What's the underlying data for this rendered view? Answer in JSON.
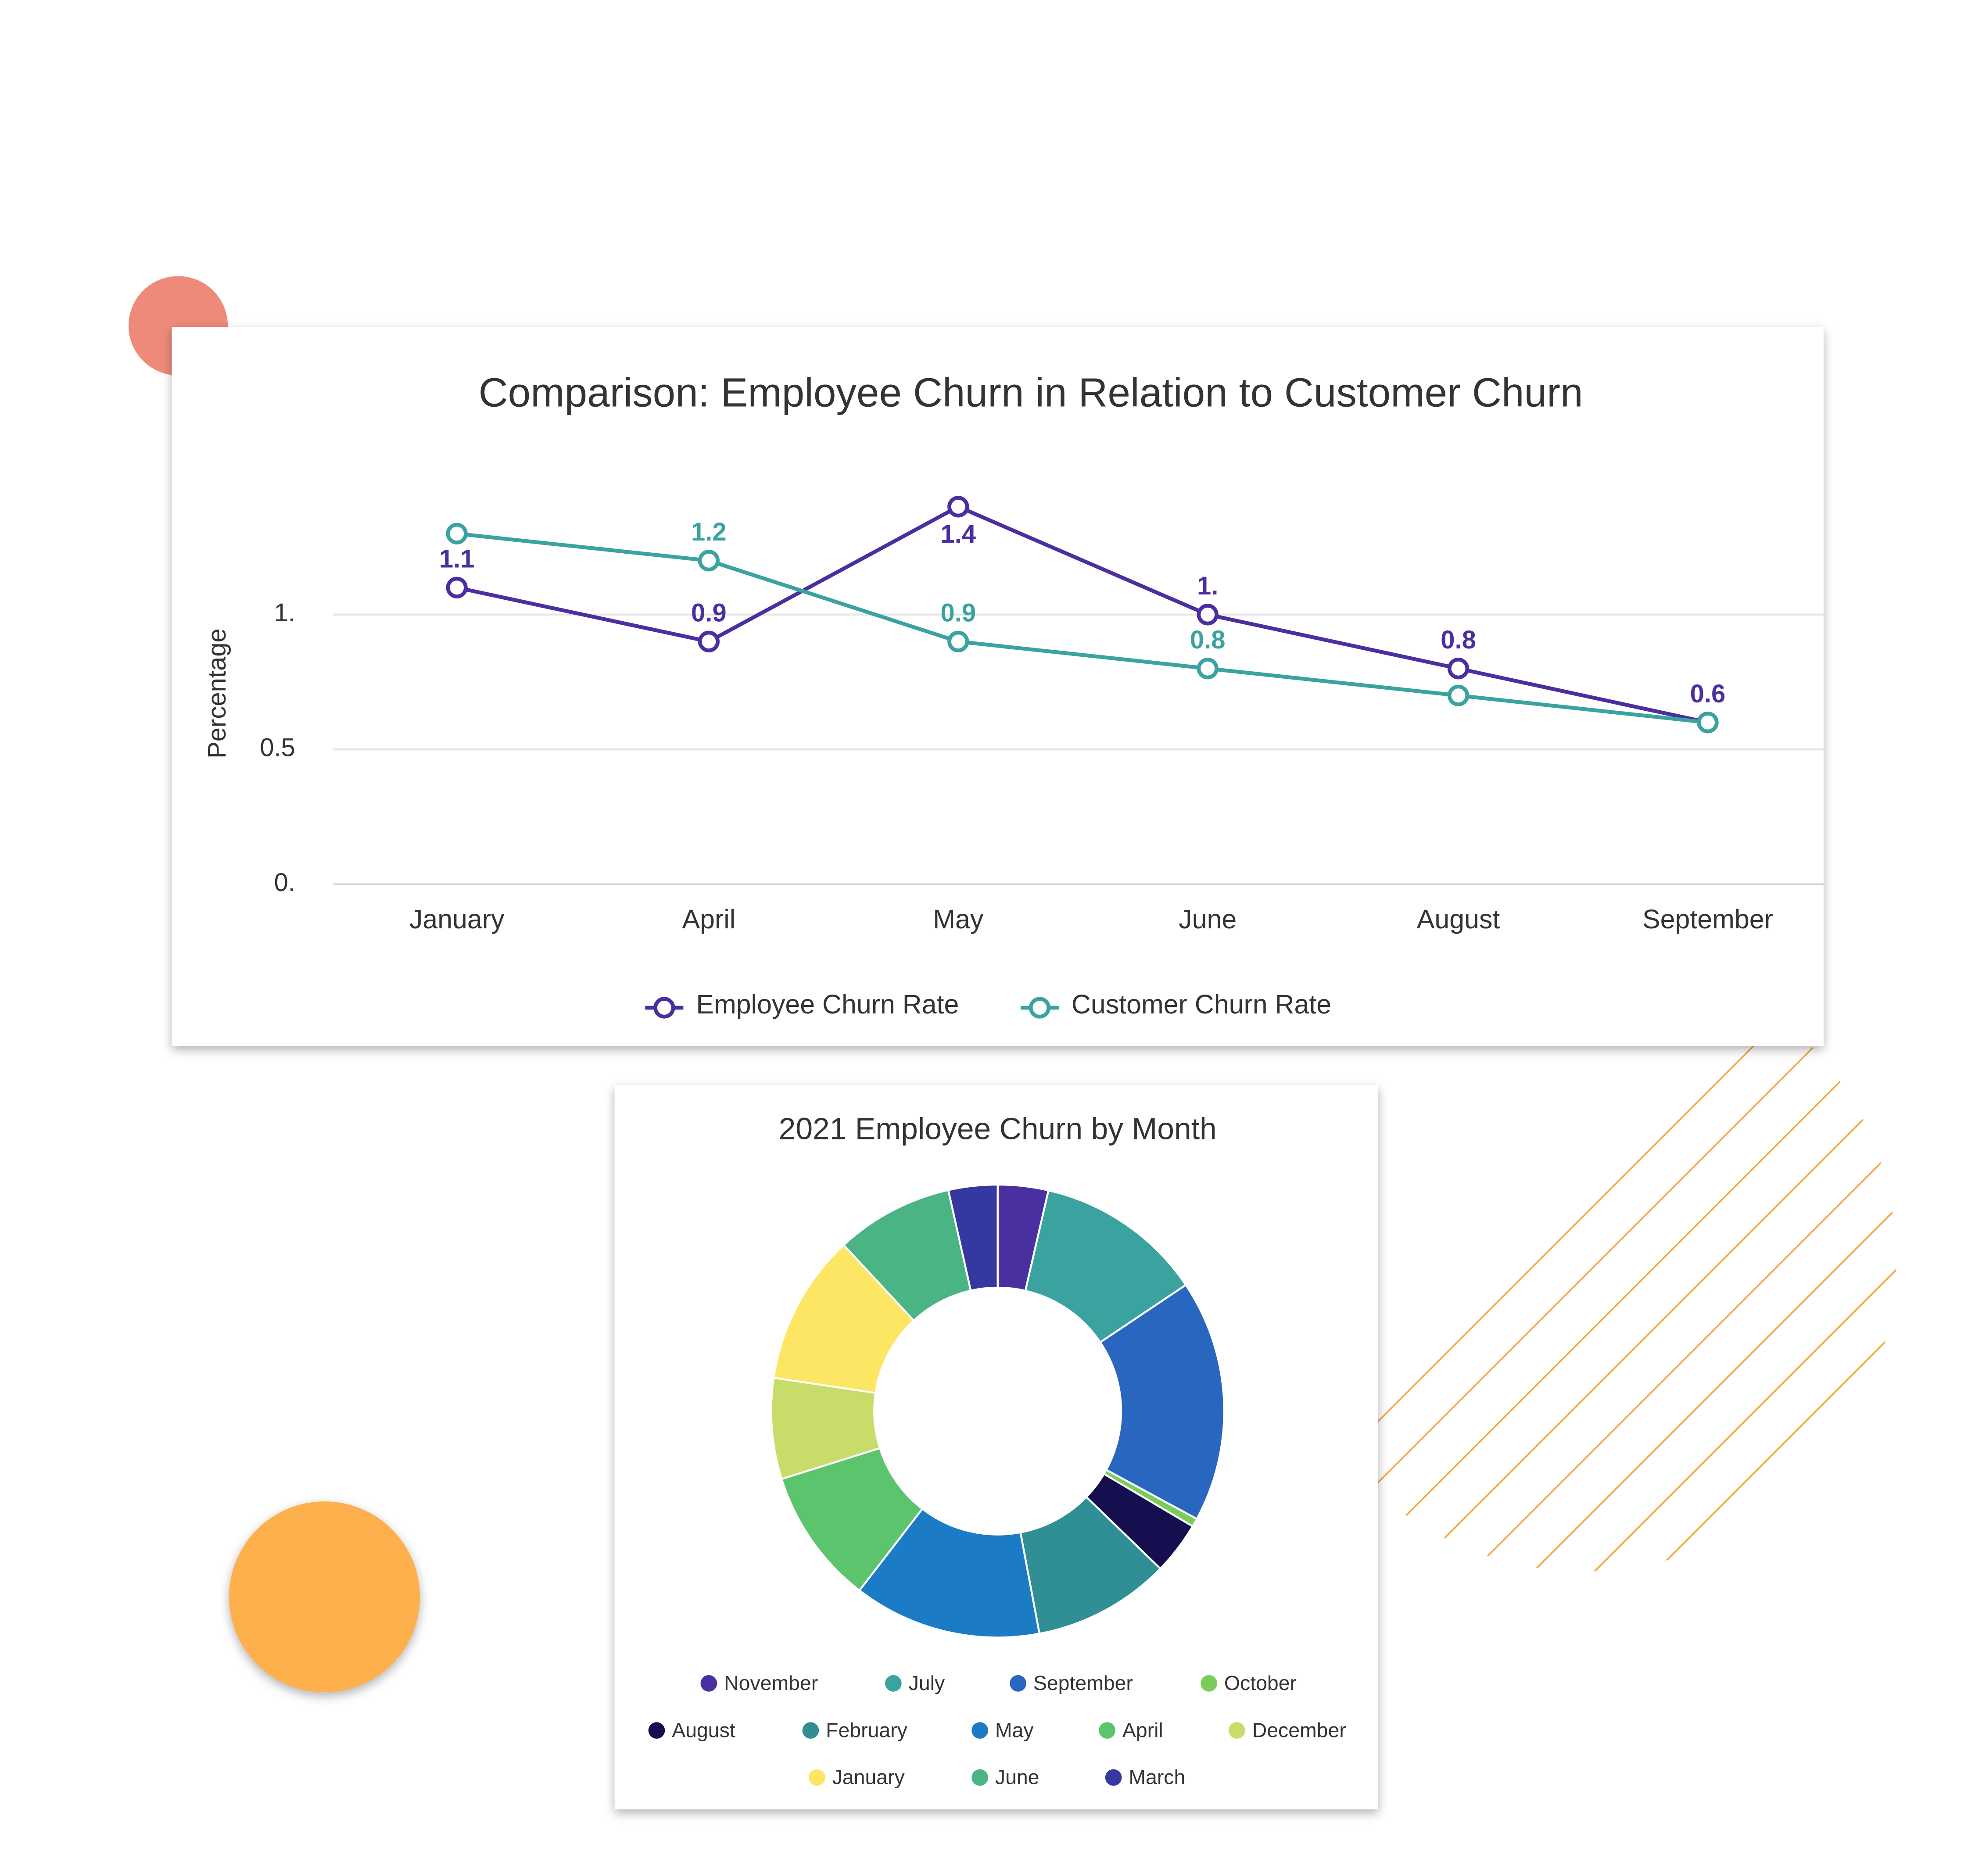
{
  "chart_data": [
    {
      "type": "line",
      "title": "Comparison: Employee Churn in Relation to Customer Churn",
      "y_label": "Percentage",
      "categories": [
        "January",
        "April",
        "May",
        "June",
        "August",
        "September"
      ],
      "series": [
        {
          "name": "Employee Churn Rate",
          "color": "#4b2fa0",
          "values": [
            1.1,
            0.9,
            1.4,
            1.0,
            0.8,
            0.6
          ],
          "value_labels": [
            "1.1",
            "0.9",
            "1.4",
            "1.",
            "0.8",
            "0.6"
          ]
        },
        {
          "name": "Customer Churn Rate",
          "color": "#3aa3a0",
          "values": [
            1.3,
            1.2,
            0.9,
            0.8,
            0.7,
            0.6
          ],
          "value_labels": [
            null,
            "1.2",
            "0.9",
            "0.8",
            null,
            null
          ]
        }
      ],
      "ylim": [
        0,
        1.5
      ],
      "yticks": [
        {
          "value": 0,
          "label": "0."
        },
        0.5,
        {
          "value": 1,
          "label": "1."
        }
      ],
      "grid": true,
      "legend": "bottom"
    },
    {
      "type": "donut",
      "title": "2021 Employee Churn by Month",
      "categories": [
        "November",
        "July",
        "September",
        "October",
        "August",
        "February",
        "May",
        "April",
        "December",
        "January",
        "June",
        "March"
      ],
      "values": [
        3.6,
        12,
        17.3,
        0.6,
        3.75,
        9.8,
        13.4,
        9.7,
        7.2,
        10.75,
        8.4,
        3.5
      ],
      "colors": [
        "#4a2fa0",
        "#3aa3a0",
        "#2966c0",
        "#7ccc5c",
        "#150f50",
        "#2f8f95",
        "#1b7bc4",
        "#5cc46c",
        "#c8dc6a",
        "#fce664",
        "#4ab485",
        "#3538a0"
      ],
      "legend": "bottom"
    }
  ]
}
